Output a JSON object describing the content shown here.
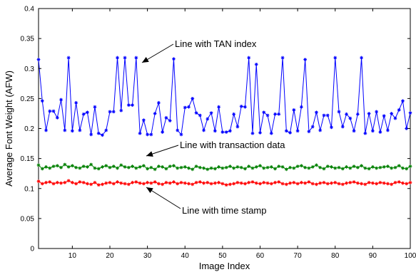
{
  "chart_data": {
    "type": "line",
    "xlabel": "Image Index",
    "ylabel": "Average Font Weight (AFW)",
    "xlim": [
      1,
      100
    ],
    "ylim": [
      0,
      0.4
    ],
    "x_ticks": [
      10,
      20,
      30,
      40,
      50,
      60,
      70,
      80,
      90,
      100
    ],
    "y_ticks": [
      0,
      0.05,
      0.1,
      0.15,
      0.2,
      0.25,
      0.3,
      0.35,
      0.4
    ],
    "x_tick_labels": [
      "10",
      "20",
      "30",
      "40",
      "50",
      "60",
      "70",
      "80",
      "90",
      "100"
    ],
    "y_tick_labels": [
      "0",
      "0.05",
      "0.1",
      "0.15",
      "0.2",
      "0.25",
      "0.3",
      "0.35",
      "0.4"
    ],
    "grid": false,
    "series": [
      {
        "name": "Line with TAN index",
        "color": "#0000ff",
        "marker": "star",
        "x": [
          1,
          2,
          3,
          4,
          5,
          6,
          7,
          8,
          9,
          10,
          11,
          12,
          13,
          14,
          15,
          16,
          17,
          18,
          19,
          20,
          21,
          22,
          23,
          24,
          25,
          26,
          27,
          28,
          29,
          30,
          31,
          32,
          33,
          34,
          35,
          36,
          37,
          38,
          39,
          40,
          41,
          42,
          43,
          44,
          45,
          46,
          47,
          48,
          49,
          50,
          51,
          52,
          53,
          54,
          55,
          56,
          57,
          58,
          59,
          60,
          61,
          62,
          63,
          64,
          65,
          66,
          67,
          68,
          69,
          70,
          71,
          72,
          73,
          74,
          75,
          76,
          77,
          78,
          79,
          80,
          81,
          82,
          83,
          84,
          85,
          86,
          87,
          88,
          89,
          90,
          91,
          92,
          93,
          94,
          95,
          96,
          97,
          98,
          99,
          100
        ],
        "values": [
          0.315,
          0.246,
          0.197,
          0.229,
          0.229,
          0.218,
          0.248,
          0.197,
          0.318,
          0.196,
          0.243,
          0.197,
          0.224,
          0.227,
          0.19,
          0.236,
          0.192,
          0.189,
          0.197,
          0.228,
          0.228,
          0.318,
          0.23,
          0.318,
          0.239,
          0.239,
          0.318,
          0.192,
          0.214,
          0.19,
          0.19,
          0.225,
          0.243,
          0.194,
          0.218,
          0.213,
          0.316,
          0.197,
          0.19,
          0.235,
          0.236,
          0.25,
          0.226,
          0.222,
          0.197,
          0.216,
          0.226,
          0.196,
          0.236,
          0.194,
          0.194,
          0.196,
          0.224,
          0.203,
          0.237,
          0.236,
          0.318,
          0.192,
          0.307,
          0.193,
          0.227,
          0.222,
          0.192,
          0.224,
          0.224,
          0.318,
          0.196,
          0.193,
          0.231,
          0.196,
          0.236,
          0.315,
          0.195,
          0.203,
          0.227,
          0.197,
          0.222,
          0.222,
          0.202,
          0.318,
          0.228,
          0.203,
          0.224,
          0.217,
          0.196,
          0.224,
          0.318,
          0.192,
          0.225,
          0.196,
          0.228,
          0.194,
          0.221,
          0.197,
          0.225,
          0.217,
          0.231,
          0.246,
          0.2,
          0.226
        ]
      },
      {
        "name": "Line with transaction data",
        "color": "#008000",
        "marker": "star",
        "x": [
          1,
          2,
          3,
          4,
          5,
          6,
          7,
          8,
          9,
          10,
          11,
          12,
          13,
          14,
          15,
          16,
          17,
          18,
          19,
          20,
          21,
          22,
          23,
          24,
          25,
          26,
          27,
          28,
          29,
          30,
          31,
          32,
          33,
          34,
          35,
          36,
          37,
          38,
          39,
          40,
          41,
          42,
          43,
          44,
          45,
          46,
          47,
          48,
          49,
          50,
          51,
          52,
          53,
          54,
          55,
          56,
          57,
          58,
          59,
          60,
          61,
          62,
          63,
          64,
          65,
          66,
          67,
          68,
          69,
          70,
          71,
          72,
          73,
          74,
          75,
          76,
          77,
          78,
          79,
          80,
          81,
          82,
          83,
          84,
          85,
          86,
          87,
          88,
          89,
          90,
          91,
          92,
          93,
          94,
          95,
          96,
          97,
          98,
          99,
          100
        ],
        "values": [
          0.139,
          0.133,
          0.136,
          0.134,
          0.137,
          0.138,
          0.135,
          0.14,
          0.136,
          0.138,
          0.135,
          0.134,
          0.137,
          0.136,
          0.14,
          0.134,
          0.133,
          0.136,
          0.138,
          0.135,
          0.137,
          0.134,
          0.139,
          0.136,
          0.135,
          0.137,
          0.134,
          0.136,
          0.138,
          0.133,
          0.135,
          0.132,
          0.137,
          0.136,
          0.133,
          0.137,
          0.138,
          0.134,
          0.135,
          0.136,
          0.134,
          0.132,
          0.137,
          0.135,
          0.134,
          0.132,
          0.134,
          0.133,
          0.136,
          0.134,
          0.135,
          0.137,
          0.134,
          0.136,
          0.135,
          0.133,
          0.137,
          0.134,
          0.136,
          0.138,
          0.134,
          0.135,
          0.136,
          0.133,
          0.137,
          0.136,
          0.132,
          0.135,
          0.134,
          0.137,
          0.138,
          0.135,
          0.134,
          0.136,
          0.139,
          0.135,
          0.133,
          0.137,
          0.136,
          0.134,
          0.135,
          0.133,
          0.136,
          0.134,
          0.137,
          0.135,
          0.138,
          0.134,
          0.133,
          0.136,
          0.134,
          0.135,
          0.136,
          0.137,
          0.134,
          0.135,
          0.138,
          0.134,
          0.133,
          0.137
        ]
      },
      {
        "name": "Line with time stamp",
        "color": "#ff0000",
        "marker": "star",
        "x": [
          1,
          2,
          3,
          4,
          5,
          6,
          7,
          8,
          9,
          10,
          11,
          12,
          13,
          14,
          15,
          16,
          17,
          18,
          19,
          20,
          21,
          22,
          23,
          24,
          25,
          26,
          27,
          28,
          29,
          30,
          31,
          32,
          33,
          34,
          35,
          36,
          37,
          38,
          39,
          40,
          41,
          42,
          43,
          44,
          45,
          46,
          47,
          48,
          49,
          50,
          51,
          52,
          53,
          54,
          55,
          56,
          57,
          58,
          59,
          60,
          61,
          62,
          63,
          64,
          65,
          66,
          67,
          68,
          69,
          70,
          71,
          72,
          73,
          74,
          75,
          76,
          77,
          78,
          79,
          80,
          81,
          82,
          83,
          84,
          85,
          86,
          87,
          88,
          89,
          90,
          91,
          92,
          93,
          94,
          95,
          96,
          97,
          98,
          99,
          100
        ],
        "values": [
          0.112,
          0.108,
          0.11,
          0.111,
          0.108,
          0.11,
          0.109,
          0.11,
          0.113,
          0.11,
          0.108,
          0.111,
          0.11,
          0.108,
          0.107,
          0.11,
          0.106,
          0.107,
          0.109,
          0.11,
          0.108,
          0.111,
          0.109,
          0.108,
          0.107,
          0.11,
          0.111,
          0.109,
          0.108,
          0.11,
          0.109,
          0.111,
          0.108,
          0.107,
          0.11,
          0.109,
          0.111,
          0.108,
          0.11,
          0.109,
          0.108,
          0.107,
          0.11,
          0.111,
          0.109,
          0.11,
          0.108,
          0.109,
          0.11,
          0.108,
          0.106,
          0.107,
          0.108,
          0.11,
          0.109,
          0.108,
          0.11,
          0.111,
          0.109,
          0.108,
          0.11,
          0.109,
          0.108,
          0.11,
          0.111,
          0.108,
          0.107,
          0.109,
          0.11,
          0.108,
          0.11,
          0.109,
          0.111,
          0.108,
          0.107,
          0.109,
          0.11,
          0.108,
          0.109,
          0.11,
          0.108,
          0.107,
          0.109,
          0.11,
          0.111,
          0.109,
          0.108,
          0.107,
          0.11,
          0.109,
          0.108,
          0.11,
          0.109,
          0.108,
          0.107,
          0.11,
          0.111,
          0.109,
          0.108,
          0.11
        ]
      }
    ],
    "annotations": [
      {
        "text": "Line with TAN index",
        "series": 0,
        "points_to_x": 26,
        "points_to_y": 0.315
      },
      {
        "text": "Line with transaction data",
        "series": 1,
        "points_to_x": 29,
        "points_to_y": 0.136
      },
      {
        "text": "Line with time stamp",
        "series": 2,
        "points_to_x": 29,
        "points_to_y": 0.111
      }
    ]
  }
}
